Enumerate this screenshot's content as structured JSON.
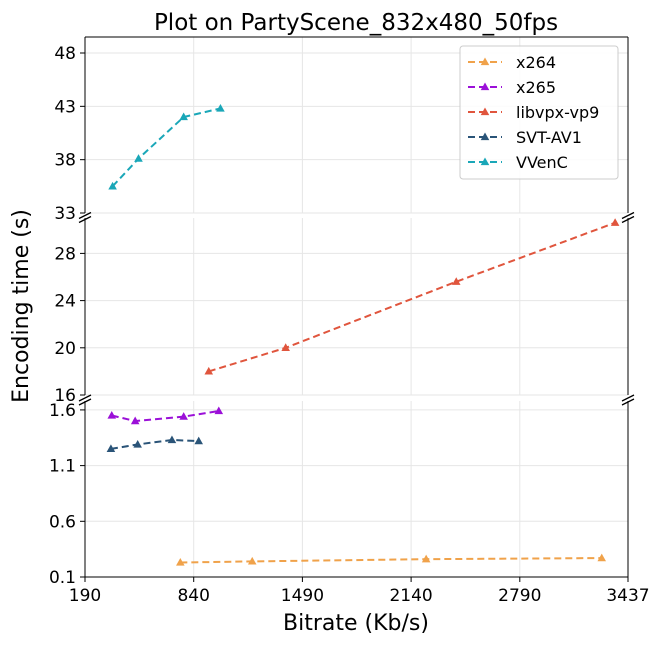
{
  "chart_data": {
    "type": "line",
    "title": "Plot on PartyScene_832x480_50fps",
    "xlabel": "Bitrate (Kb/s)",
    "ylabel": "Encoding time (s)",
    "xlim": [
      190,
      3437
    ],
    "x_ticks": [
      "190",
      "840",
      "1490",
      "2140",
      "2790",
      "3437"
    ],
    "y_scale": "broken",
    "y_segments": [
      {
        "name": "top",
        "ylim": [
          33,
          49.5
        ],
        "ticks": [
          33,
          38,
          43,
          48
        ],
        "tick_labels": [
          "33",
          "38",
          "43",
          "48"
        ]
      },
      {
        "name": "middle",
        "ylim": [
          16,
          31
        ],
        "ticks": [
          16,
          20,
          24,
          28
        ],
        "tick_labels": [
          "16",
          "20",
          "24",
          "28"
        ]
      },
      {
        "name": "bottom",
        "ylim": [
          0.1,
          1.68
        ],
        "ticks": [
          0.1,
          0.6,
          1.1,
          1.6
        ],
        "tick_labels": [
          "0.1",
          "0.6",
          "1.1",
          "1.6"
        ]
      }
    ],
    "grid": true,
    "legend_position": "top-right",
    "marker": "triangle-up",
    "line_style": "dashed",
    "series": [
      {
        "name": "x264",
        "color": "#f0a24a",
        "segment": "bottom",
        "x": [
          760,
          1190,
          2230,
          3280
        ],
        "y": [
          0.23,
          0.24,
          0.26,
          0.27
        ]
      },
      {
        "name": "x265",
        "color": "#9b10d8",
        "segment": "bottom",
        "x": [
          350,
          490,
          780,
          990
        ],
        "y": [
          1.55,
          1.5,
          1.54,
          1.59
        ]
      },
      {
        "name": "libvpx-vp9",
        "color": "#e0553d",
        "segment": "middle",
        "x": [
          930,
          1390,
          2410,
          3360
        ],
        "y": [
          18.0,
          20.0,
          25.6,
          30.6
        ]
      },
      {
        "name": "SVT-AV1",
        "color": "#2a5478",
        "segment": "bottom",
        "x": [
          345,
          505,
          710,
          870
        ],
        "y": [
          1.25,
          1.29,
          1.33,
          1.32
        ]
      },
      {
        "name": "VVenC",
        "color": "#1aa7b8",
        "segment": "top",
        "x": [
          355,
          510,
          780,
          1000
        ],
        "y": [
          35.5,
          38.1,
          42.0,
          42.8
        ]
      }
    ]
  }
}
